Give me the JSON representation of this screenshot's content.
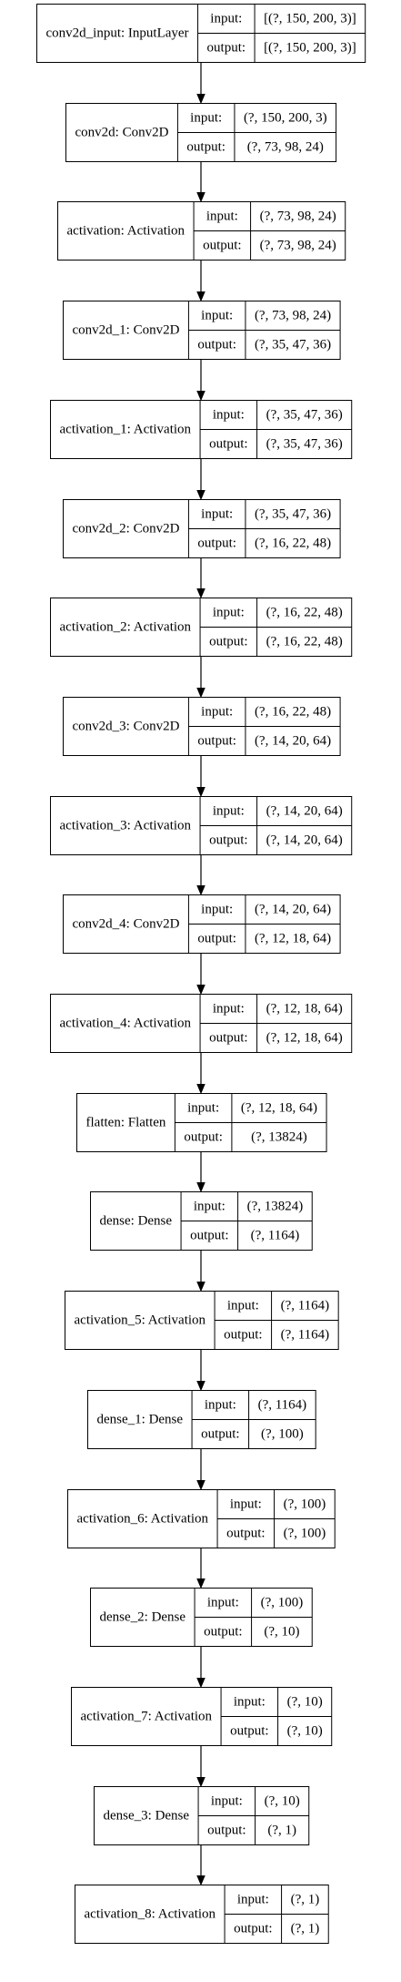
{
  "diagram": {
    "port_labels": {
      "input": "input:",
      "output": "output:"
    },
    "layers": [
      {
        "name": "conv2d_input: InputLayer",
        "input": "[(?, 150, 200, 3)]",
        "output": "[(?, 150, 200, 3)]"
      },
      {
        "name": "conv2d: Conv2D",
        "input": "(?, 150, 200, 3)",
        "output": "(?, 73, 98, 24)"
      },
      {
        "name": "activation: Activation",
        "input": "(?, 73, 98, 24)",
        "output": "(?, 73, 98, 24)"
      },
      {
        "name": "conv2d_1: Conv2D",
        "input": "(?, 73, 98, 24)",
        "output": "(?, 35, 47, 36)"
      },
      {
        "name": "activation_1: Activation",
        "input": "(?, 35, 47, 36)",
        "output": "(?, 35, 47, 36)"
      },
      {
        "name": "conv2d_2: Conv2D",
        "input": "(?, 35, 47, 36)",
        "output": "(?, 16, 22, 48)"
      },
      {
        "name": "activation_2: Activation",
        "input": "(?, 16, 22, 48)",
        "output": "(?, 16, 22, 48)"
      },
      {
        "name": "conv2d_3: Conv2D",
        "input": "(?, 16, 22, 48)",
        "output": "(?, 14, 20, 64)"
      },
      {
        "name": "activation_3: Activation",
        "input": "(?, 14, 20, 64)",
        "output": "(?, 14, 20, 64)"
      },
      {
        "name": "conv2d_4: Conv2D",
        "input": "(?, 14, 20, 64)",
        "output": "(?, 12, 18, 64)"
      },
      {
        "name": "activation_4: Activation",
        "input": "(?, 12, 18, 64)",
        "output": "(?, 12, 18, 64)"
      },
      {
        "name": "flatten: Flatten",
        "input": "(?, 12, 18, 64)",
        "output": "(?, 13824)"
      },
      {
        "name": "dense: Dense",
        "input": "(?, 13824)",
        "output": "(?, 1164)"
      },
      {
        "name": "activation_5: Activation",
        "input": "(?, 1164)",
        "output": "(?, 1164)"
      },
      {
        "name": "dense_1: Dense",
        "input": "(?, 1164)",
        "output": "(?, 100)"
      },
      {
        "name": "activation_6: Activation",
        "input": "(?, 100)",
        "output": "(?, 100)"
      },
      {
        "name": "dense_2: Dense",
        "input": "(?, 100)",
        "output": "(?, 10)"
      },
      {
        "name": "activation_7: Activation",
        "input": "(?, 10)",
        "output": "(?, 10)"
      },
      {
        "name": "dense_3: Dense",
        "input": "(?, 10)",
        "output": "(?, 1)"
      },
      {
        "name": "activation_8: Activation",
        "input": "(?, 1)",
        "output": "(?, 1)"
      }
    ]
  }
}
